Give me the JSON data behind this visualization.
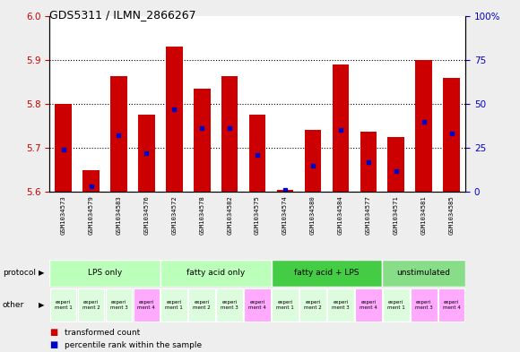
{
  "title": "GDS5311 / ILMN_2866267",
  "samples": [
    "GSM1034573",
    "GSM1034579",
    "GSM1034583",
    "GSM1034576",
    "GSM1034572",
    "GSM1034578",
    "GSM1034582",
    "GSM1034575",
    "GSM1034574",
    "GSM1034580",
    "GSM1034584",
    "GSM1034577",
    "GSM1034571",
    "GSM1034581",
    "GSM1034585"
  ],
  "red_values": [
    5.8,
    5.65,
    5.863,
    5.775,
    5.93,
    5.835,
    5.863,
    5.775,
    5.605,
    5.74,
    5.89,
    5.737,
    5.725,
    5.9,
    5.858
  ],
  "blue_values": [
    24,
    3,
    32,
    22,
    47,
    36,
    36,
    21,
    1,
    15,
    35,
    17,
    12,
    40,
    33
  ],
  "baseline": 5.6,
  "ylim_left": [
    5.6,
    6.0
  ],
  "ylim_right": [
    0,
    100
  ],
  "yticks_left": [
    5.6,
    5.7,
    5.8,
    5.9,
    6.0
  ],
  "yticks_right": [
    0,
    25,
    50,
    75,
    100
  ],
  "groups": [
    {
      "label": "LPS only",
      "count": 4,
      "color": "#bbffbb"
    },
    {
      "label": "fatty acid only",
      "count": 4,
      "color": "#bbffbb"
    },
    {
      "label": "fatty acid + LPS",
      "count": 4,
      "color": "#44cc44"
    },
    {
      "label": "unstimulated",
      "count": 3,
      "color": "#88dd88"
    }
  ],
  "other_labels_flat": [
    "experi\nment 1",
    "experi\nment 2",
    "experi\nment 3",
    "experi\nment 4",
    "experi\nment 1",
    "experi\nment 2",
    "experi\nment 3",
    "experi\nment 4",
    "experi\nment 1",
    "experi\nment 2",
    "experi\nment 3",
    "experi\nment 4",
    "experi\nment 1",
    "experi\nment 3",
    "experi\nment 4"
  ],
  "other_colors_flat": [
    "#ddfcdd",
    "#ddfcdd",
    "#ddfcdd",
    "#ffaaff",
    "#ddfcdd",
    "#ddfcdd",
    "#ddfcdd",
    "#ffaaff",
    "#ddfcdd",
    "#ddfcdd",
    "#ddfcdd",
    "#ffaaff",
    "#ddfcdd",
    "#ffaaff",
    "#ffaaff"
  ],
  "bar_color": "#cc0000",
  "blue_color": "#0000cc",
  "bg_color": "#cccccc",
  "plot_bg": "#ffffff",
  "fig_bg": "#eeeeee",
  "left_axis_color": "#cc0000",
  "right_axis_color": "#0000cc"
}
